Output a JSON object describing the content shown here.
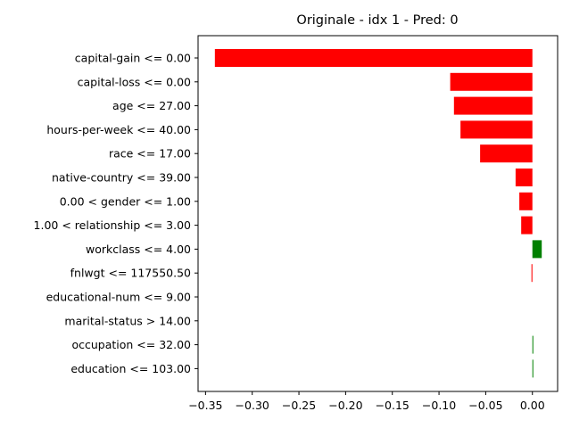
{
  "chart_data": {
    "type": "bar",
    "orientation": "horizontal",
    "title": "Originale - idx 1 - Pred: 0",
    "xlabel": "",
    "ylabel": "",
    "xlim": [
      -0.358,
      0.027
    ],
    "grid": false,
    "colors": {
      "negative": "#ff0000",
      "positive": "#008000"
    },
    "categories": [
      "capital-gain <= 0.00",
      "capital-loss <= 0.00",
      "age <= 27.00",
      "hours-per-week <= 40.00",
      "race <= 17.00",
      "native-country <= 39.00",
      "0.00 < gender <= 1.00",
      "1.00 < relationship <= 3.00",
      "workclass <= 4.00",
      "fnlwgt <= 117550.50",
      "educational-num <= 9.00",
      "marital-status > 14.00",
      "occupation <= 32.00",
      "education <= 103.00"
    ],
    "values": [
      -0.34,
      -0.088,
      -0.084,
      -0.077,
      -0.056,
      -0.018,
      -0.014,
      -0.012,
      0.01,
      -0.001,
      0.0,
      0.0,
      0.0005,
      0.0005
    ],
    "xticks": [
      -0.35,
      -0.3,
      -0.25,
      -0.2,
      -0.15,
      -0.1,
      -0.05,
      0.0
    ],
    "xtick_labels": [
      "−0.35",
      "−0.30",
      "−0.25",
      "−0.20",
      "−0.15",
      "−0.10",
      "−0.05",
      "0.00"
    ]
  }
}
